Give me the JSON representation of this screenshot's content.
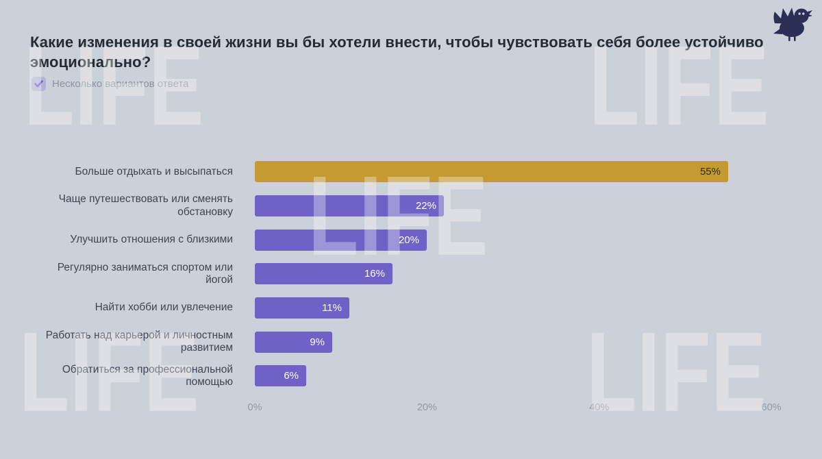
{
  "brand": {
    "watermark_text": "LIFE",
    "logo_icon": "bird-logo",
    "logo_color": "#2b2e55"
  },
  "header": {
    "title": "Какие изменения в своей жизни вы бы хотели внести, чтобы чувствовать себя более устойчиво эмоционально?",
    "note": "Несколько вариантов ответа",
    "note_icon": "checkbox-check-icon"
  },
  "chart_data": {
    "type": "bar",
    "orientation": "horizontal",
    "title": "Какие изменения в своей жизни вы бы хотели внести, чтобы чувствовать себя более устойчиво эмоционально?",
    "subtitle": "Несколько вариантов ответа",
    "categories": [
      "Больше отдыхать и высыпаться",
      "Чаще путешествовать или сменять обстановку",
      "Улучшить отношения с близкими",
      "Регулярно заниматься спортом или йогой",
      "Найти хобби или увлечение",
      "Работать над карьерой и личностным развитием",
      "Обратиться за профессиональной помощью"
    ],
    "values": [
      55,
      22,
      20,
      16,
      11,
      9,
      6
    ],
    "value_labels": [
      "55%",
      "22%",
      "20%",
      "16%",
      "11%",
      "9%",
      "6%"
    ],
    "x_ticks": [
      "0%",
      "20%",
      "40%",
      "60%"
    ],
    "x_tick_values": [
      0,
      20,
      40,
      60
    ],
    "xlim": [
      0,
      62.7
    ],
    "grid": false,
    "legend": false,
    "highlight_index": 0,
    "highlight_color": "#c59a33",
    "bar_color": "#6f61c6",
    "value_label_color": "#ffffff",
    "value_label_color_highlight": "#2b2a1a"
  },
  "colors": {
    "background": "#ccd0d8",
    "title_text": "#262a35",
    "category_text": "#3e4452",
    "tick_text": "#9298a6",
    "note_text": "#8d93a2",
    "watermark": "rgba(255,255,255,0.33)",
    "checkbox_bg": "rgba(124,112,205,0.30)",
    "checkbox_check": "#6c5ec9"
  }
}
